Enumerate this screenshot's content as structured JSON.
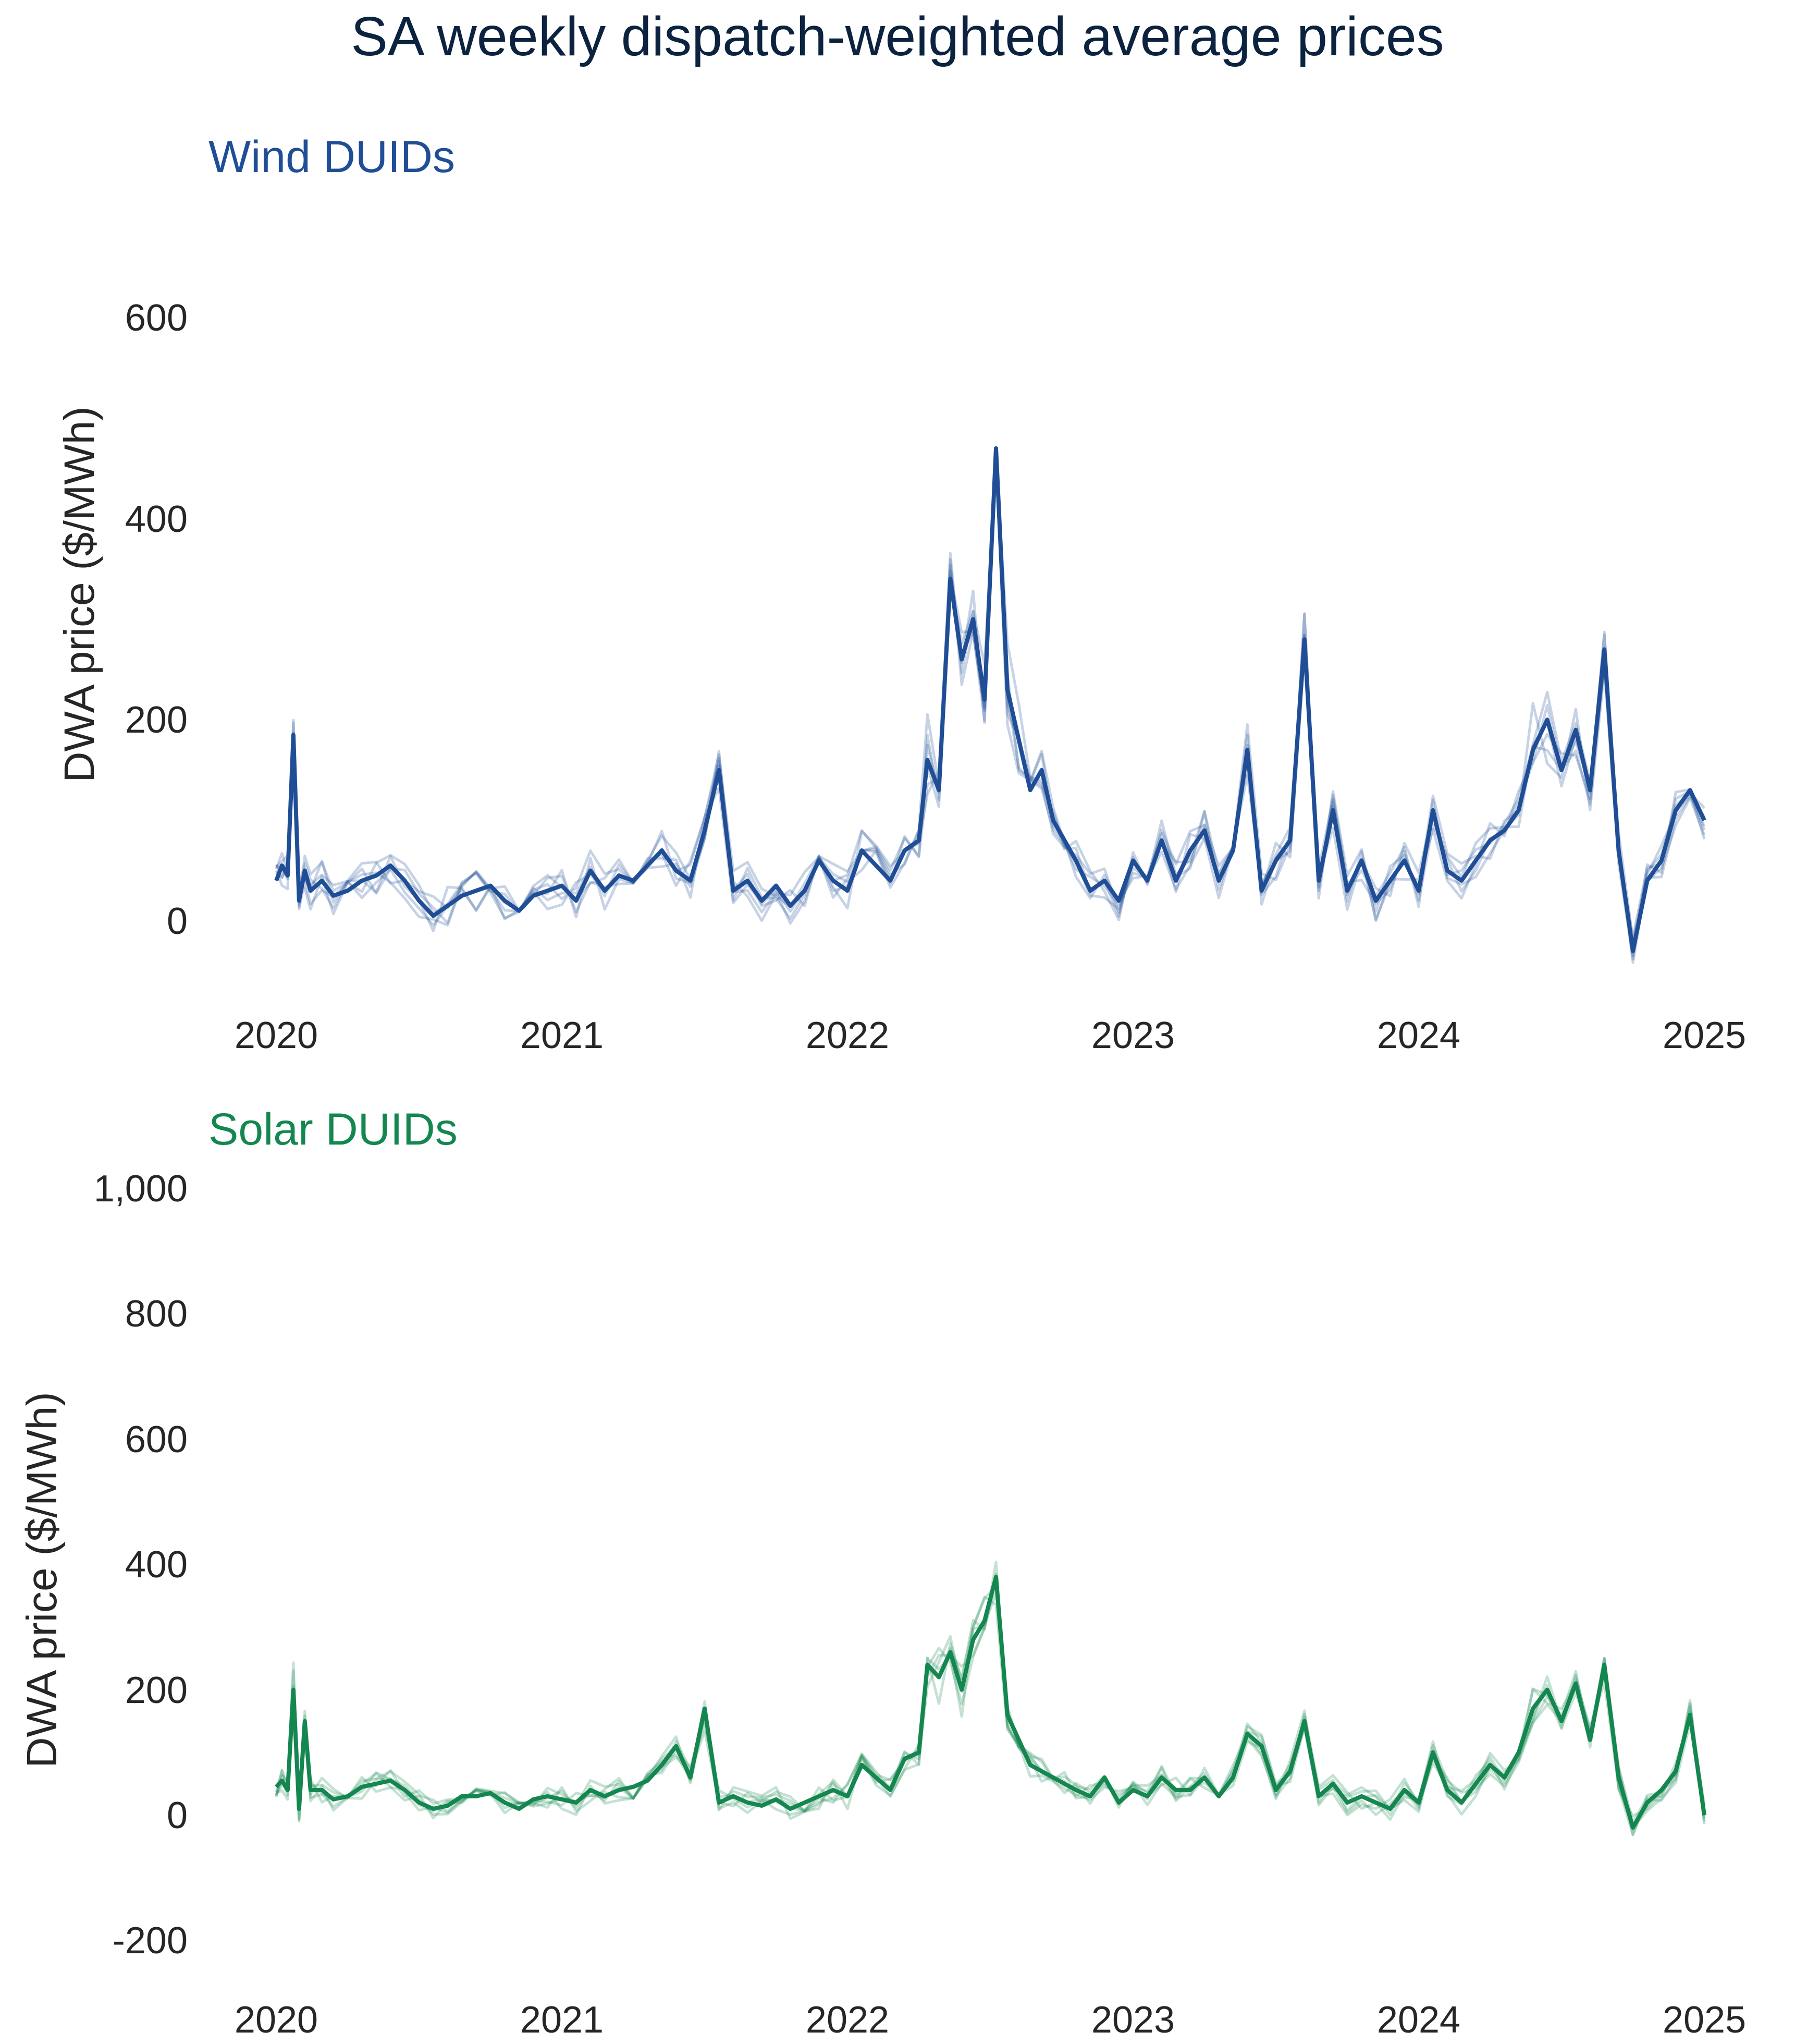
{
  "title": "SA weekly dispatch-weighted average prices",
  "colors": {
    "title": "#0c2340",
    "text": "#262626",
    "wind": "#1f4e96",
    "solar": "#14864f"
  },
  "chart_data": [
    {
      "type": "line",
      "title": "Wind DUIDs",
      "ylabel": "DWA price ($/MWh)",
      "xlabel": "",
      "xlim": [
        2020,
        2025
      ],
      "ylim": [
        -75,
        700
      ],
      "x_ticks": [
        2020,
        2021,
        2022,
        2023,
        2024,
        2025
      ],
      "x_tick_labels": [
        "2020",
        "2021",
        "2022",
        "2023",
        "2024",
        "2025"
      ],
      "y_ticks": [
        0,
        200,
        400,
        600
      ],
      "y_tick_labels": [
        "0",
        "200",
        "400",
        "600"
      ],
      "grid": false,
      "legend": "none",
      "color": "#1f4e96",
      "representative_series": {
        "x": [
          2020.0,
          2020.02,
          2020.04,
          2020.06,
          2020.08,
          2020.1,
          2020.12,
          2020.16,
          2020.2,
          2020.25,
          2020.3,
          2020.35,
          2020.4,
          2020.45,
          2020.5,
          2020.55,
          2020.6,
          2020.65,
          2020.7,
          2020.75,
          2020.8,
          2020.85,
          2020.9,
          2020.95,
          2021.0,
          2021.05,
          2021.1,
          2021.15,
          2021.2,
          2021.25,
          2021.3,
          2021.35,
          2021.4,
          2021.45,
          2021.5,
          2021.55,
          2021.6,
          2021.65,
          2021.7,
          2021.75,
          2021.8,
          2021.85,
          2021.9,
          2021.95,
          2022.0,
          2022.05,
          2022.1,
          2022.15,
          2022.2,
          2022.25,
          2022.28,
          2022.32,
          2022.36,
          2022.4,
          2022.44,
          2022.48,
          2022.52,
          2022.56,
          2022.6,
          2022.64,
          2022.68,
          2022.72,
          2022.76,
          2022.8,
          2022.85,
          2022.9,
          2022.95,
          2023.0,
          2023.05,
          2023.1,
          2023.15,
          2023.2,
          2023.25,
          2023.3,
          2023.35,
          2023.4,
          2023.45,
          2023.5,
          2023.55,
          2023.6,
          2023.65,
          2023.7,
          2023.75,
          2023.8,
          2023.85,
          2023.9,
          2023.95,
          2024.0,
          2024.05,
          2024.1,
          2024.15,
          2024.2,
          2024.25,
          2024.3,
          2024.35,
          2024.4,
          2024.45,
          2024.5,
          2024.55,
          2024.6,
          2024.65,
          2024.7,
          2024.75,
          2024.8,
          2024.85,
          2024.9,
          2024.95,
          2025.0
        ],
        "y": [
          40,
          55,
          45,
          185,
          20,
          50,
          30,
          40,
          25,
          30,
          40,
          45,
          55,
          40,
          20,
          5,
          15,
          25,
          30,
          35,
          20,
          10,
          25,
          30,
          35,
          20,
          50,
          30,
          45,
          40,
          55,
          70,
          50,
          40,
          90,
          150,
          30,
          40,
          20,
          35,
          15,
          30,
          60,
          40,
          30,
          70,
          55,
          40,
          70,
          80,
          160,
          130,
          340,
          260,
          300,
          220,
          470,
          230,
          180,
          130,
          150,
          100,
          80,
          60,
          30,
          40,
          20,
          60,
          40,
          80,
          40,
          70,
          90,
          40,
          70,
          170,
          30,
          60,
          80,
          280,
          40,
          110,
          30,
          60,
          20,
          40,
          60,
          30,
          110,
          50,
          40,
          60,
          80,
          90,
          110,
          170,
          200,
          150,
          190,
          130,
          270,
          70,
          -30,
          40,
          60,
          110,
          130,
          100
        ]
      }
    },
    {
      "type": "line",
      "title": "Solar DUIDs",
      "ylabel": "DWA price ($/MWh)",
      "xlabel": "",
      "xlim": [
        2020,
        2025
      ],
      "ylim": [
        -220,
        1000
      ],
      "x_ticks": [
        2020,
        2021,
        2022,
        2023,
        2024,
        2025
      ],
      "x_tick_labels": [
        "2020",
        "2021",
        "2022",
        "2023",
        "2024",
        "2025"
      ],
      "y_ticks": [
        -200,
        0,
        200,
        400,
        600,
        800,
        1000
      ],
      "y_tick_labels": [
        "-200",
        "0",
        "200",
        "400",
        "600",
        "800",
        "1,000"
      ],
      "grid": false,
      "legend": "none",
      "color": "#14864f",
      "representative_series": {
        "x": [
          2020.0,
          2020.02,
          2020.04,
          2020.06,
          2020.08,
          2020.1,
          2020.12,
          2020.16,
          2020.2,
          2020.25,
          2020.3,
          2020.35,
          2020.4,
          2020.45,
          2020.5,
          2020.55,
          2020.6,
          2020.65,
          2020.7,
          2020.75,
          2020.8,
          2020.85,
          2020.9,
          2020.95,
          2021.0,
          2021.05,
          2021.1,
          2021.15,
          2021.2,
          2021.25,
          2021.3,
          2021.35,
          2021.4,
          2021.45,
          2021.5,
          2021.55,
          2021.6,
          2021.65,
          2021.7,
          2021.75,
          2021.8,
          2021.85,
          2021.9,
          2021.95,
          2022.0,
          2022.05,
          2022.1,
          2022.15,
          2022.2,
          2022.25,
          2022.28,
          2022.32,
          2022.36,
          2022.4,
          2022.44,
          2022.48,
          2022.52,
          2022.56,
          2022.6,
          2022.64,
          2022.68,
          2022.72,
          2022.76,
          2022.8,
          2022.85,
          2022.9,
          2022.95,
          2023.0,
          2023.05,
          2023.1,
          2023.15,
          2023.2,
          2023.25,
          2023.3,
          2023.35,
          2023.4,
          2023.45,
          2023.5,
          2023.55,
          2023.6,
          2023.65,
          2023.7,
          2023.75,
          2023.8,
          2023.85,
          2023.9,
          2023.95,
          2024.0,
          2024.05,
          2024.1,
          2024.15,
          2024.2,
          2024.25,
          2024.3,
          2024.35,
          2024.4,
          2024.45,
          2024.5,
          2024.55,
          2024.6,
          2024.65,
          2024.7,
          2024.75,
          2024.8,
          2024.85,
          2024.9,
          2024.95,
          2025.0
        ],
        "y": [
          45,
          55,
          40,
          200,
          10,
          150,
          40,
          40,
          25,
          30,
          45,
          50,
          55,
          40,
          20,
          10,
          15,
          30,
          30,
          35,
          20,
          10,
          25,
          30,
          25,
          20,
          40,
          30,
          40,
          45,
          55,
          80,
          110,
          60,
          170,
          20,
          30,
          20,
          15,
          25,
          10,
          20,
          30,
          40,
          30,
          80,
          60,
          40,
          90,
          100,
          240,
          220,
          260,
          200,
          280,
          310,
          380,
          160,
          120,
          80,
          70,
          60,
          50,
          40,
          30,
          60,
          20,
          40,
          30,
          60,
          40,
          40,
          60,
          30,
          60,
          130,
          110,
          40,
          70,
          150,
          30,
          50,
          20,
          30,
          20,
          10,
          40,
          20,
          100,
          40,
          20,
          50,
          80,
          60,
          100,
          170,
          200,
          150,
          210,
          120,
          240,
          60,
          -20,
          20,
          40,
          70,
          160,
          0
        ]
      }
    }
  ]
}
